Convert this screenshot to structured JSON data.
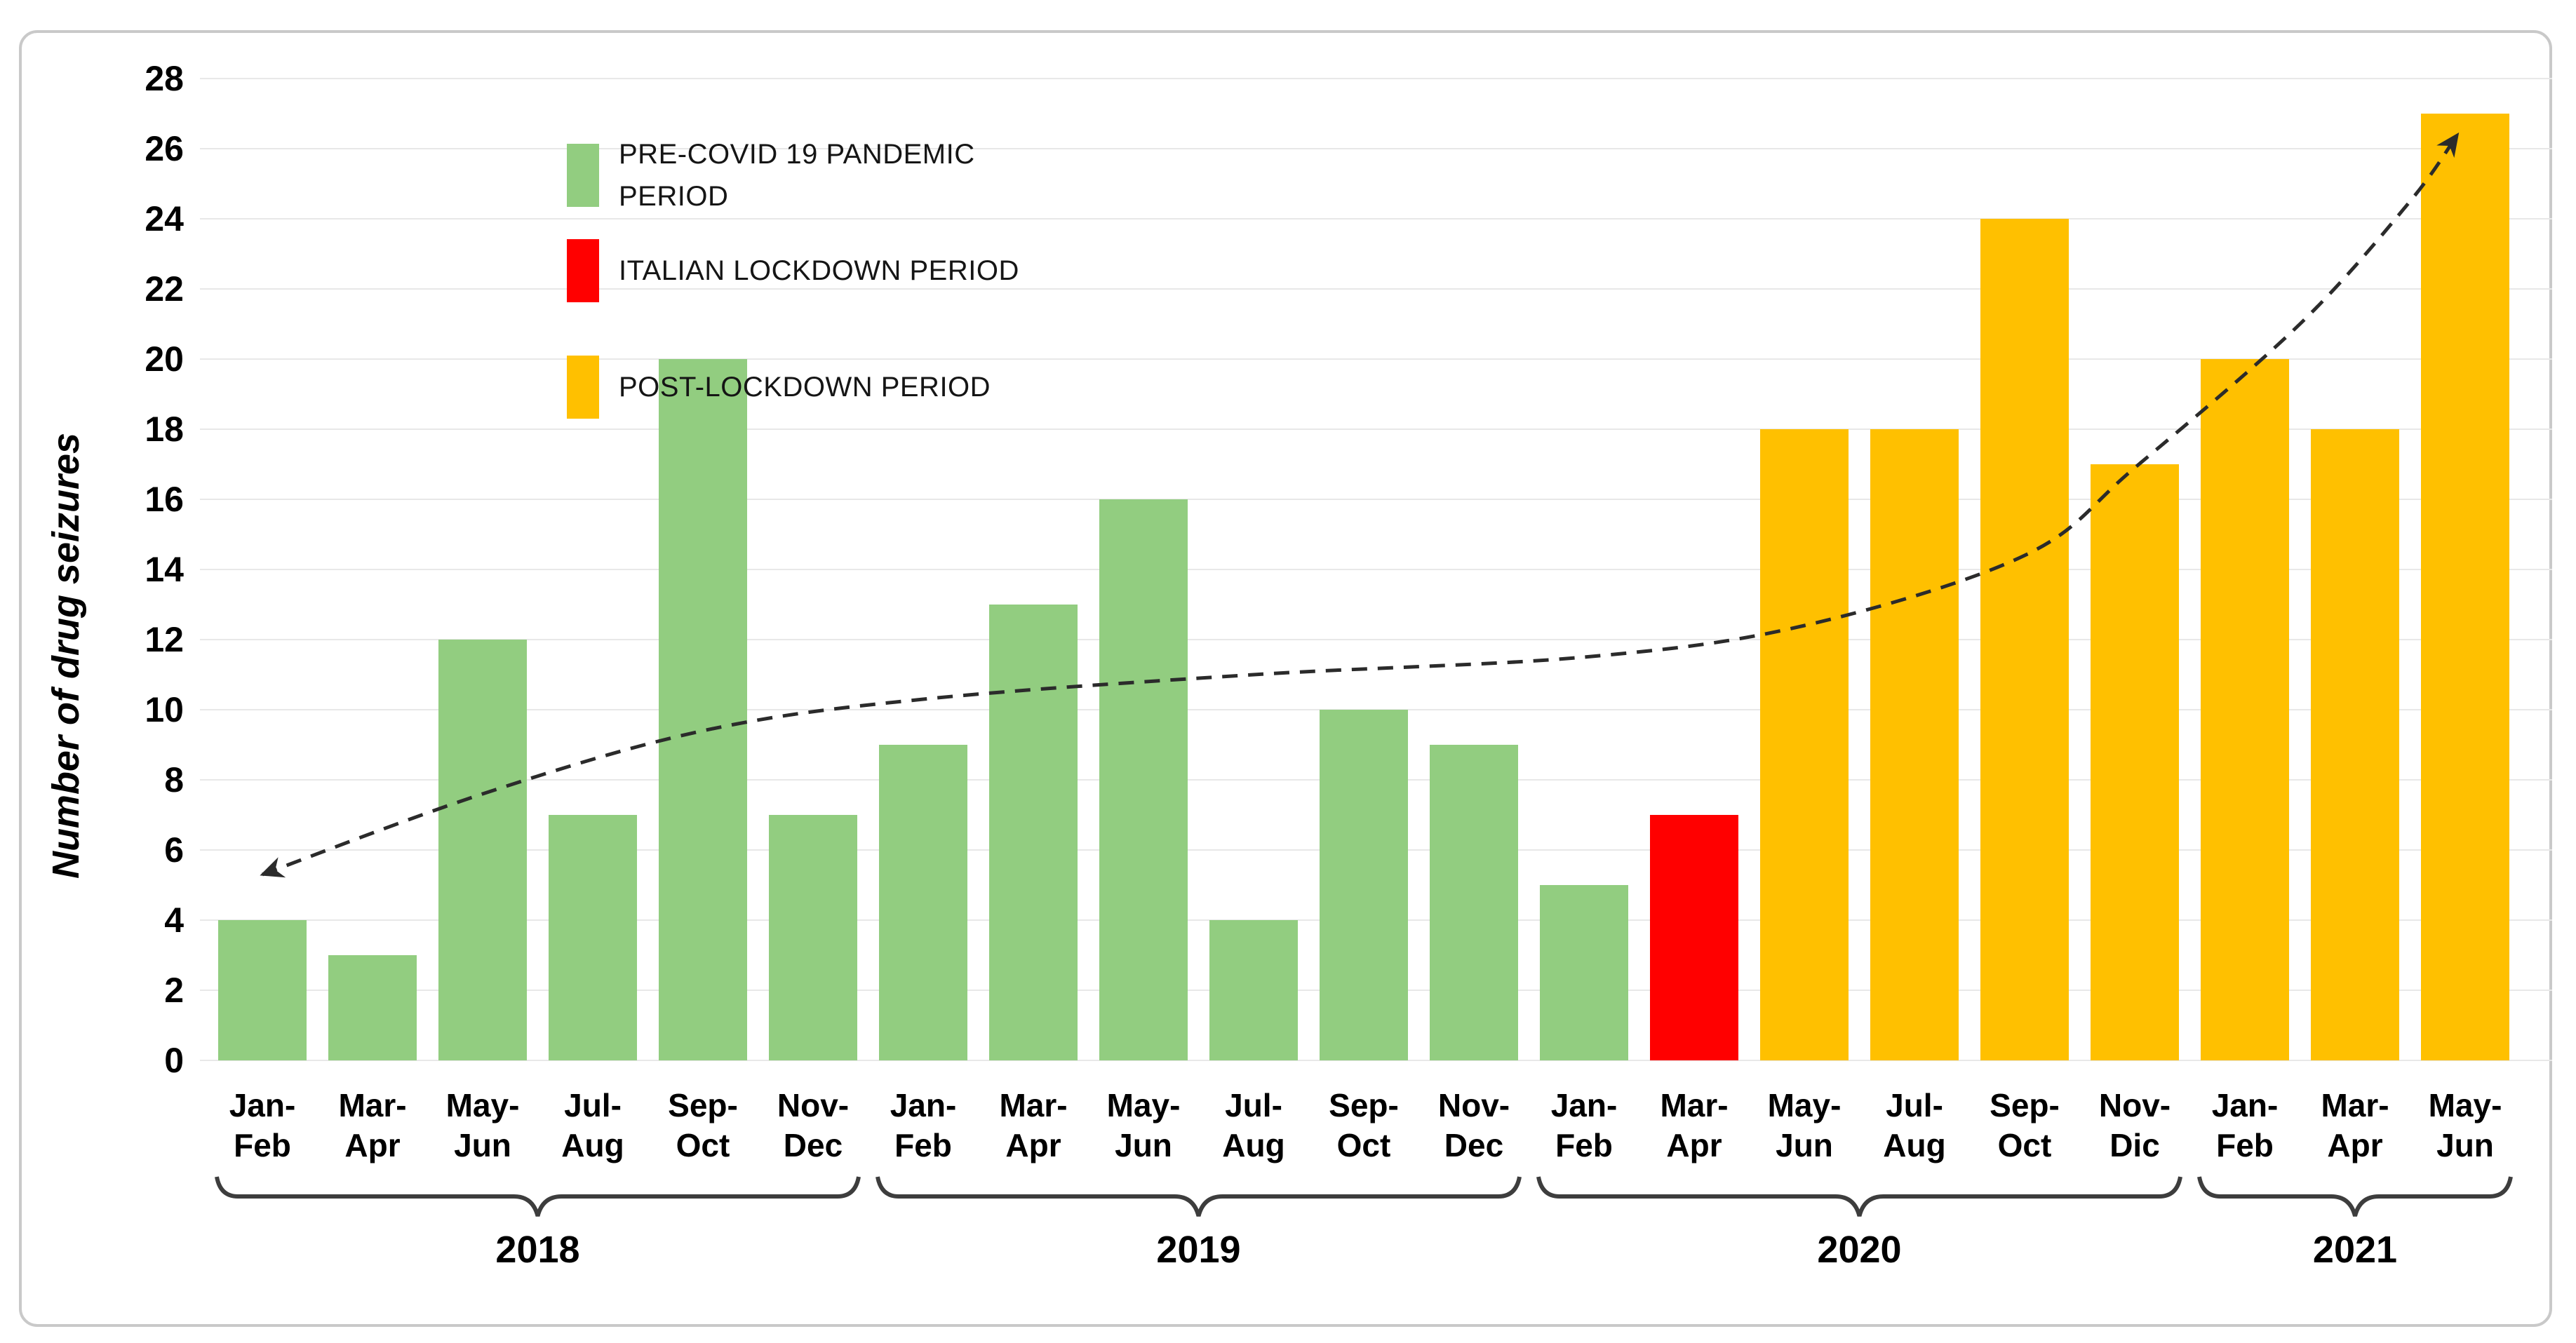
{
  "figure": {
    "background": "#ffffff",
    "border_color": "#c9c9c9"
  },
  "chart_data": {
    "type": "bar",
    "title": "",
    "xlabel": "",
    "ylabel": "Number of drug seizures",
    "ylim": [
      0,
      28
    ],
    "ytick_step": 2,
    "ytick_labels": [
      "0",
      "2",
      "4",
      "6",
      "8",
      "10",
      "12",
      "14",
      "16",
      "18",
      "20",
      "22",
      "24",
      "26",
      "28"
    ],
    "grid": true,
    "legend_position": "top-left-inside",
    "categories": [
      {
        "top": "Jan-",
        "bottom": "Feb",
        "year": "2018"
      },
      {
        "top": "Mar-",
        "bottom": "Apr",
        "year": "2018"
      },
      {
        "top": "May-",
        "bottom": "Jun",
        "year": "2018"
      },
      {
        "top": "Jul-",
        "bottom": "Aug",
        "year": "2018"
      },
      {
        "top": "Sep-",
        "bottom": "Oct",
        "year": "2018"
      },
      {
        "top": "Nov-",
        "bottom": "Dec",
        "year": "2018"
      },
      {
        "top": "Jan-",
        "bottom": "Feb",
        "year": "2019"
      },
      {
        "top": "Mar-",
        "bottom": "Apr",
        "year": "2019"
      },
      {
        "top": "May-",
        "bottom": "Jun",
        "year": "2019"
      },
      {
        "top": "Jul-",
        "bottom": "Aug",
        "year": "2019"
      },
      {
        "top": "Sep-",
        "bottom": "Oct",
        "year": "2019"
      },
      {
        "top": "Nov-",
        "bottom": "Dec",
        "year": "2019"
      },
      {
        "top": "Jan-",
        "bottom": "Feb",
        "year": "2020"
      },
      {
        "top": "Mar-",
        "bottom": "Apr",
        "year": "2020"
      },
      {
        "top": "May-",
        "bottom": "Jun",
        "year": "2020"
      },
      {
        "top": "Jul-",
        "bottom": "Aug",
        "year": "2020"
      },
      {
        "top": "Sep-",
        "bottom": "Oct",
        "year": "2020"
      },
      {
        "top": "Nov-",
        "bottom": "Dic",
        "year": "2020"
      },
      {
        "top": "Jan-",
        "bottom": "Feb",
        "year": "2021"
      },
      {
        "top": "Mar-",
        "bottom": "Apr",
        "year": "2021"
      },
      {
        "top": "May-",
        "bottom": "Jun",
        "year": "2021"
      }
    ],
    "values": [
      4,
      3,
      12,
      7,
      20,
      7,
      9,
      13,
      16,
      4,
      10,
      9,
      5,
      7,
      18,
      18,
      24,
      17,
      20,
      18,
      27
    ],
    "bar_periods": [
      "pre",
      "pre",
      "pre",
      "pre",
      "pre",
      "pre",
      "pre",
      "pre",
      "pre",
      "pre",
      "pre",
      "pre",
      "pre",
      "lockdown",
      "post",
      "post",
      "post",
      "post",
      "post",
      "post",
      "post"
    ],
    "periods": {
      "pre": {
        "color": "#92CD80",
        "label": "PRE-COVID 19 PANDEMIC PERIOD"
      },
      "lockdown": {
        "color": "#FF0000",
        "label": "ITALIAN LOCKDOWN PERIOD"
      },
      "post": {
        "color": "#FFC000",
        "label": "POST-LOCKDOWN PERIOD"
      }
    },
    "legend": [
      {
        "period": "pre",
        "lines": [
          "PRE-COVID 19 PANDEMIC",
          "PERIOD"
        ]
      },
      {
        "period": "lockdown",
        "lines": [
          "ITALIAN LOCKDOWN PERIOD",
          ""
        ]
      },
      {
        "period": "post",
        "lines": [
          "POST-LOCKDOWN PERIOD",
          ""
        ]
      }
    ],
    "year_groups": [
      {
        "label": "2018",
        "start": 0,
        "end": 5
      },
      {
        "label": "2019",
        "start": 6,
        "end": 11
      },
      {
        "label": "2020",
        "start": 12,
        "end": 17
      },
      {
        "label": "2021",
        "start": 18,
        "end": 20
      }
    ],
    "trend": {
      "style": "dashed",
      "color": "#2b2b2b",
      "arrow_both_ends": true,
      "points": [
        {
          "i": 0,
          "v": 5.3
        },
        {
          "i": 2,
          "v": 7.6
        },
        {
          "i": 4,
          "v": 9.4
        },
        {
          "i": 6,
          "v": 10.3
        },
        {
          "i": 9,
          "v": 11.0
        },
        {
          "i": 12,
          "v": 11.5
        },
        {
          "i": 14,
          "v": 12.4
        },
        {
          "i": 16,
          "v": 14.4
        },
        {
          "i": 17,
          "v": 16.9
        },
        {
          "i": 18.5,
          "v": 21.0
        },
        {
          "i": 19.5,
          "v": 24.5
        },
        {
          "i": 19.93,
          "v": 26.4
        }
      ]
    },
    "colors": {
      "grid": "#e8e8e8",
      "text": "#000000"
    }
  }
}
